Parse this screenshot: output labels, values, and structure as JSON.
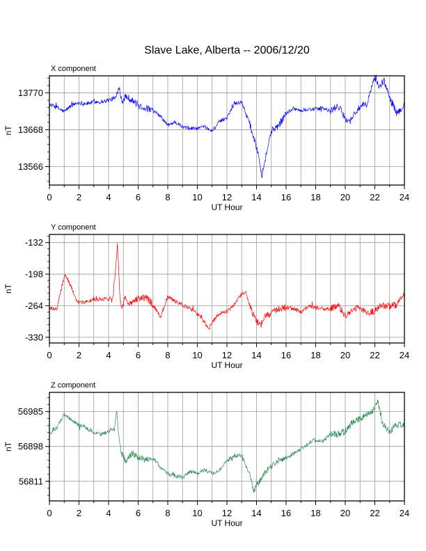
{
  "figure": {
    "title": "Slave Lake, Alberta -- 2006/12/20"
  },
  "chart_data": [
    {
      "type": "line",
      "panel_label": "X component",
      "xlabel": "UT Hour",
      "ylabel": "nT",
      "xlim": [
        0,
        24
      ],
      "xticks": [
        0,
        2,
        4,
        6,
        8,
        10,
        12,
        14,
        16,
        18,
        20,
        22,
        24
      ],
      "ylim": [
        13515,
        13817
      ],
      "yticks": [
        13566,
        13668,
        13770
      ],
      "grid": true,
      "color": "#0000ff",
      "series": [
        {
          "x": [
            0,
            0.5,
            1,
            1.5,
            2,
            2.5,
            3,
            3.5,
            4,
            4.5,
            4.7,
            4.9,
            5.2,
            5.6,
            6,
            6.5,
            7,
            7.5,
            8,
            8.5,
            9,
            9.5,
            10,
            10.5,
            11,
            11.5,
            12,
            12.5,
            13,
            13.5,
            14,
            14.2,
            14.35,
            14.5,
            15,
            15.5,
            16,
            16.5,
            17,
            17.5,
            18,
            18.5,
            19,
            19.5,
            20,
            20.3,
            20.6,
            21,
            21.5,
            21.8,
            22,
            22.3,
            22.6,
            23,
            23.5,
            24
          ],
          "y": [
            13738,
            13730,
            13718,
            13736,
            13743,
            13740,
            13745,
            13745,
            13750,
            13755,
            13790,
            13748,
            13760,
            13750,
            13735,
            13728,
            13720,
            13705,
            13680,
            13690,
            13675,
            13672,
            13672,
            13675,
            13665,
            13690,
            13702,
            13740,
            13745,
            13690,
            13620,
            13590,
            13540,
            13570,
            13665,
            13680,
            13712,
            13728,
            13720,
            13725,
            13725,
            13728,
            13718,
            13735,
            13700,
            13690,
            13712,
            13730,
            13740,
            13790,
            13810,
            13785,
            13805,
            13760,
            13710,
            13740
          ]
        }
      ]
    },
    {
      "type": "line",
      "panel_label": "Y component",
      "xlabel": "UT Hour",
      "ylabel": "nT",
      "xlim": [
        0,
        24
      ],
      "xticks": [
        0,
        2,
        4,
        6,
        8,
        10,
        12,
        14,
        16,
        18,
        20,
        22,
        24
      ],
      "ylim": [
        -342,
        -115
      ],
      "yticks": [
        -330,
        -264,
        -198,
        -132
      ],
      "grid": true,
      "color": "#ff0000",
      "series": [
        {
          "x": [
            0,
            0.5,
            0.9,
            1.1,
            1.4,
            1.7,
            2,
            2.5,
            3,
            3.5,
            4,
            4.3,
            4.5,
            4.6,
            4.75,
            4.9,
            5.1,
            5.4,
            5.8,
            6.2,
            6.6,
            7,
            7.5,
            8,
            8.5,
            9,
            9.5,
            10,
            10.5,
            10.8,
            11,
            11.5,
            12,
            12.5,
            13,
            13.3,
            13.5,
            14,
            14.3,
            14.5,
            15,
            15.5,
            16,
            16.5,
            17,
            17.5,
            18,
            18.5,
            19,
            19.5,
            20,
            20.5,
            21,
            21.5,
            22,
            22.5,
            23,
            23.5,
            24
          ],
          "y": [
            -270,
            -272,
            -215,
            -200,
            -220,
            -245,
            -258,
            -256,
            -252,
            -250,
            -250,
            -245,
            -175,
            -128,
            -240,
            -270,
            -248,
            -260,
            -250,
            -248,
            -248,
            -262,
            -288,
            -245,
            -255,
            -262,
            -270,
            -280,
            -300,
            -312,
            -298,
            -280,
            -276,
            -262,
            -240,
            -235,
            -262,
            -296,
            -305,
            -286,
            -280,
            -272,
            -268,
            -270,
            -278,
            -265,
            -268,
            -270,
            -272,
            -262,
            -285,
            -272,
            -268,
            -280,
            -275,
            -262,
            -265,
            -262,
            -240
          ]
        }
      ]
    },
    {
      "type": "line",
      "panel_label": "Z component",
      "xlabel": "UT Hour",
      "ylabel": "nT",
      "xlim": [
        0,
        24
      ],
      "xticks": [
        0,
        2,
        4,
        6,
        8,
        10,
        12,
        14,
        16,
        18,
        20,
        22,
        24
      ],
      "ylim": [
        56762,
        57033
      ],
      "yticks": [
        56811,
        56898,
        56985
      ],
      "grid": true,
      "color": "#2e8b57",
      "series": [
        {
          "x": [
            0,
            0.5,
            1,
            1.5,
            2,
            2.5,
            3,
            3.5,
            4,
            4.4,
            4.55,
            4.7,
            4.9,
            5.2,
            5.6,
            6,
            6.5,
            7,
            7.5,
            8,
            8.5,
            9,
            9.5,
            10,
            10.5,
            11,
            11.5,
            12,
            12.5,
            13,
            13.5,
            13.8,
            14,
            14.5,
            15,
            15.5,
            16,
            16.5,
            17,
            17.5,
            18,
            18.5,
            19,
            19.5,
            20,
            20.5,
            21,
            21.5,
            22,
            22.2,
            22.5,
            23,
            23.5,
            24
          ],
          "y": [
            56930,
            56945,
            56978,
            56965,
            56952,
            56945,
            56932,
            56928,
            56935,
            56945,
            56992,
            56915,
            56880,
            56860,
            56880,
            56872,
            56865,
            56870,
            56845,
            56830,
            56825,
            56820,
            56835,
            56830,
            56840,
            56830,
            56838,
            56862,
            56872,
            56878,
            56830,
            56790,
            56800,
            56830,
            56848,
            56862,
            56870,
            56880,
            56892,
            56905,
            56915,
            56910,
            56930,
            56928,
            56935,
            56960,
            56968,
            56980,
            56990,
            57012,
            56960,
            56935,
            56952,
            56955
          ]
        }
      ]
    }
  ]
}
